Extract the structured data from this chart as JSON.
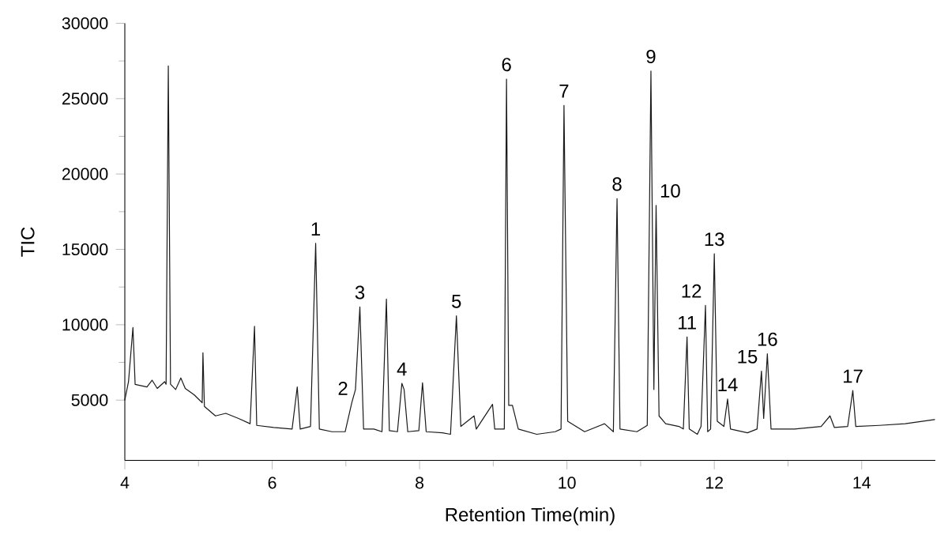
{
  "chart_data": {
    "type": "line",
    "xlabel": "Retention Time(min)",
    "ylabel": "TIC",
    "color": "#1a1a1a",
    "xlim": [
      4,
      15
    ],
    "xticks": [
      4,
      6,
      8,
      10,
      12,
      14
    ],
    "ylim": [
      1000,
      30000
    ],
    "yticks": [
      5000,
      10000,
      15000,
      20000,
      25000,
      30000
    ],
    "x": [
      4.0,
      4.05,
      4.11,
      4.14,
      4.3,
      4.37,
      4.44,
      4.54,
      4.56,
      4.59,
      4.62,
      4.69,
      4.76,
      4.82,
      4.94,
      5.05,
      5.06,
      5.08,
      5.23,
      5.37,
      5.55,
      5.7,
      5.76,
      5.79,
      6.02,
      6.27,
      6.34,
      6.38,
      6.52,
      6.59,
      6.64,
      6.81,
      6.99,
      7.08,
      7.13,
      7.19,
      7.24,
      7.38,
      7.49,
      7.55,
      7.59,
      7.7,
      7.76,
      7.79,
      7.84,
      7.99,
      8.04,
      8.09,
      8.31,
      8.42,
      8.5,
      8.56,
      8.74,
      8.77,
      8.99,
      9.02,
      9.15,
      9.18,
      9.21,
      9.26,
      9.34,
      9.59,
      9.84,
      9.92,
      9.96,
      10.01,
      10.24,
      10.51,
      10.63,
      10.68,
      10.72,
      10.95,
      11.09,
      11.14,
      11.18,
      11.21,
      11.25,
      11.34,
      11.52,
      11.58,
      11.63,
      11.66,
      11.77,
      11.82,
      11.88,
      11.91,
      11.95,
      12.0,
      12.04,
      12.13,
      12.18,
      12.22,
      12.45,
      12.58,
      12.64,
      12.67,
      12.72,
      12.77,
      13.09,
      13.45,
      13.57,
      13.63,
      13.81,
      13.88,
      13.92,
      14.24,
      14.59,
      14.99
    ],
    "values": [
      5000,
      6220,
      9820,
      6040,
      5870,
      6320,
      5770,
      6220,
      6050,
      27170,
      6050,
      5700,
      6470,
      5770,
      5350,
      4820,
      8140,
      4580,
      3950,
      4120,
      3770,
      3430,
      9890,
      3320,
      3180,
      3080,
      5870,
      3080,
      3250,
      15400,
      3080,
      2900,
      2900,
      4820,
      5700,
      11180,
      3080,
      3080,
      2900,
      11700,
      2970,
      2900,
      6110,
      5700,
      2900,
      2970,
      6150,
      2900,
      2830,
      2730,
      10590,
      3250,
      3950,
      3080,
      4720,
      3080,
      3080,
      26300,
      4650,
      4650,
      3080,
      2730,
      2900,
      3080,
      24550,
      3600,
      2900,
      3430,
      2900,
      18370,
      3080,
      2900,
      3320,
      26830,
      5700,
      17920,
      3950,
      3430,
      3250,
      3080,
      9190,
      3080,
      2730,
      3250,
      11280,
      2900,
      3080,
      14710,
      3600,
      3250,
      5070,
      3080,
      2830,
      3080,
      6920,
      3780,
      8070,
      3080,
      3080,
      3250,
      3950,
      3180,
      3250,
      5630,
      3250,
      3320,
      3430,
      3710
    ],
    "annotations": [
      {
        "text": "1",
        "x": 6.59,
        "y": 15400
      },
      {
        "text": "2",
        "x": 7.08,
        "y": 4820
      },
      {
        "text": "3",
        "x": 7.19,
        "y": 11180
      },
      {
        "text": "4",
        "x": 7.76,
        "y": 6110
      },
      {
        "text": "5",
        "x": 8.5,
        "y": 10590
      },
      {
        "text": "6",
        "x": 9.18,
        "y": 26300
      },
      {
        "text": "7",
        "x": 9.96,
        "y": 24550
      },
      {
        "text": "8",
        "x": 10.68,
        "y": 18370
      },
      {
        "text": "9",
        "x": 11.14,
        "y": 26830
      },
      {
        "text": "10",
        "x": 11.21,
        "y": 17920
      },
      {
        "text": "11",
        "x": 11.63,
        "y": 9190
      },
      {
        "text": "12",
        "x": 11.88,
        "y": 11280
      },
      {
        "text": "13",
        "x": 12.0,
        "y": 14710
      },
      {
        "text": "14",
        "x": 12.18,
        "y": 5070
      },
      {
        "text": "15",
        "x": 12.64,
        "y": 6920
      },
      {
        "text": "16",
        "x": 12.72,
        "y": 8070
      },
      {
        "text": "17",
        "x": 13.88,
        "y": 5630
      }
    ]
  }
}
